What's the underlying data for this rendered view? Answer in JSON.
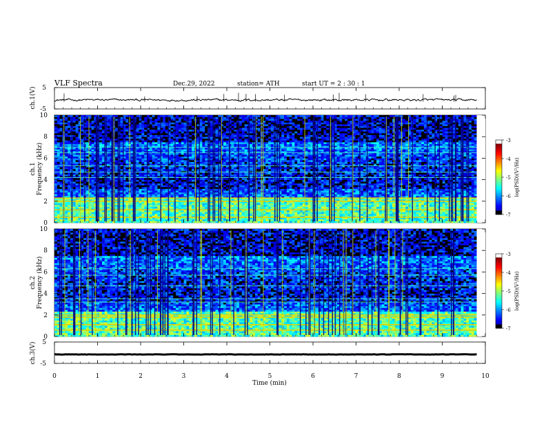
{
  "header": {
    "title": "VLF  Spectra",
    "date": "Dec.29, 2022",
    "station": "station= ATH",
    "start": "start  UT  =   2  : 30 : 1"
  },
  "chart_data": [
    {
      "type": "line",
      "panel": "ch1-waveform",
      "ylabel": "ch.1(V)",
      "ylim": [
        -5,
        5
      ],
      "yticks": [
        "5",
        "-5"
      ],
      "xlim": [
        0,
        10
      ],
      "baseline": -0.8,
      "noise_amplitude": 0.6,
      "color": "#000000"
    },
    {
      "type": "heatmap",
      "panel": "ch1-spectrogram",
      "ylabel": "ch.1\nFrequency (kHz)",
      "ylim": [
        0,
        10
      ],
      "yticks": [
        "0",
        "2",
        "4",
        "6",
        "8",
        "10"
      ],
      "xlim": [
        0,
        9.8
      ],
      "colorbar": {
        "label": "log(PSD)(V²/Hz)",
        "range": [
          -7,
          -3
        ],
        "ticks": [
          "-3",
          "-4",
          "-5",
          "-6",
          "-7"
        ]
      },
      "bands_khz": [
        0.5,
        1.2,
        2.0,
        2.3,
        4.2,
        4.7,
        5.3,
        6.5,
        7.0
      ]
    },
    {
      "type": "heatmap",
      "panel": "ch2-spectrogram",
      "ylabel": "ch.2\nFrequency (kHz)",
      "ylim": [
        0,
        10
      ],
      "yticks": [
        "0",
        "2",
        "4",
        "6",
        "8",
        "10"
      ],
      "xlim": [
        0,
        9.8
      ],
      "colorbar": {
        "label": "log(PSD)(V²/Hz)",
        "range": [
          -7,
          -3
        ],
        "ticks": [
          "-3",
          "-4",
          "-5",
          "-6",
          "-7"
        ]
      },
      "bands_khz": [
        0.6,
        1.1,
        1.8,
        2.0,
        3.2,
        3.5,
        4.7,
        5.7,
        6.3
      ]
    },
    {
      "type": "line",
      "panel": "ch3-waveform",
      "ylabel": "ch.3(V)",
      "ylim": [
        -5,
        5
      ],
      "yticks": [
        "5",
        "-5"
      ],
      "xlim": [
        0,
        10
      ],
      "baseline": -0.8,
      "noise_amplitude": 0.08,
      "color": "#000000"
    }
  ],
  "xaxis": {
    "label": "Time  (min)",
    "ticks": [
      "0",
      "1",
      "2",
      "3",
      "4",
      "5",
      "6",
      "7",
      "8",
      "9",
      "10"
    ],
    "range": [
      0,
      10
    ]
  }
}
